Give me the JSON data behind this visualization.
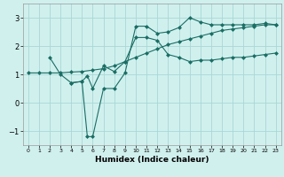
{
  "xlabel": "Humidex (Indice chaleur)",
  "background_color": "#d0f0ee",
  "grid_color": "#a8d8d4",
  "line_color": "#1a6e64",
  "xlim": [
    -0.5,
    23.5
  ],
  "ylim": [
    -1.5,
    3.5
  ],
  "yticks": [
    -1,
    0,
    1,
    2,
    3
  ],
  "xticks": [
    0,
    1,
    2,
    3,
    4,
    5,
    6,
    7,
    8,
    9,
    10,
    11,
    12,
    13,
    14,
    15,
    16,
    17,
    18,
    19,
    20,
    21,
    22,
    23
  ],
  "line1_x": [
    0,
    1,
    2,
    3,
    4,
    5,
    6,
    7,
    8,
    9,
    10,
    11,
    12,
    13,
    14,
    15,
    16,
    17,
    18,
    19,
    20,
    21,
    22,
    23
  ],
  "line1_y": [
    1.05,
    1.05,
    1.05,
    1.05,
    1.08,
    1.1,
    1.15,
    1.2,
    1.3,
    1.45,
    1.6,
    1.75,
    1.9,
    2.05,
    2.15,
    2.25,
    2.35,
    2.45,
    2.55,
    2.6,
    2.65,
    2.7,
    2.75,
    2.75
  ],
  "line2_x": [
    2,
    3,
    4,
    5,
    5.5,
    6,
    7,
    8,
    9,
    10,
    11,
    12,
    13,
    14,
    15,
    16,
    17,
    18,
    19,
    20,
    21,
    22,
    23
  ],
  "line2_y": [
    1.6,
    1.0,
    0.7,
    0.75,
    0.95,
    0.5,
    1.3,
    1.1,
    1.45,
    2.3,
    2.3,
    2.2,
    1.7,
    1.6,
    1.45,
    1.5,
    1.5,
    1.55,
    1.6,
    1.6,
    1.65,
    1.7,
    1.75
  ],
  "line3_x": [
    4,
    5,
    5.5,
    6,
    7,
    8,
    9,
    10,
    11,
    12,
    13,
    14,
    15,
    16,
    17,
    18,
    19,
    20,
    21,
    22,
    23
  ],
  "line3_y": [
    0.7,
    0.75,
    -1.2,
    -1.2,
    0.5,
    0.5,
    1.05,
    2.7,
    2.7,
    2.45,
    2.5,
    2.65,
    3.0,
    2.85,
    2.75,
    2.75,
    2.75,
    2.75,
    2.75,
    2.8,
    2.75
  ],
  "marker": "D",
  "markersize": 2.5,
  "linewidth": 0.8
}
